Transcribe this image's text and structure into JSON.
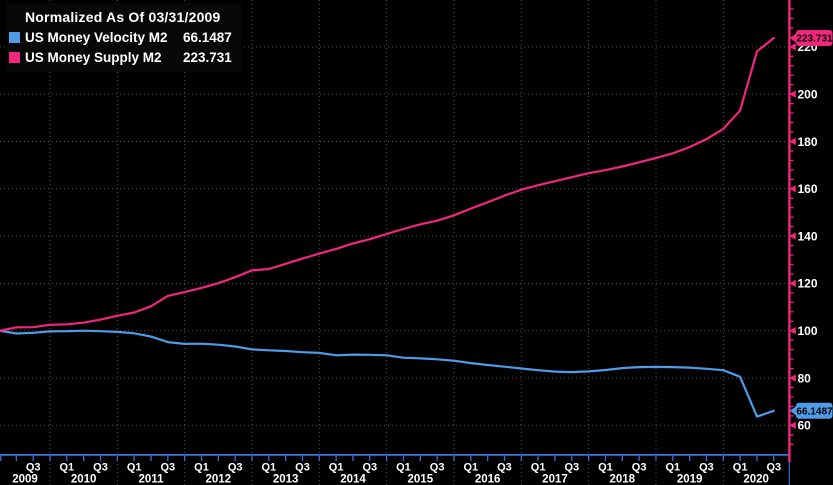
{
  "legend": {
    "title": "Normalized As Of 03/31/2009",
    "items": [
      {
        "label": "US Money Velocity M2",
        "value": "66.1487",
        "color": "#4E9BE8"
      },
      {
        "label": "US Money Supply M2",
        "value": "223.731",
        "color": "#F2267E"
      }
    ]
  },
  "axis": {
    "y_ticks": [
      220,
      200,
      180,
      160,
      140,
      120,
      100,
      80,
      60
    ],
    "x_years": [
      2009,
      2010,
      2011,
      2012,
      2013,
      2014,
      2015,
      2016,
      2017,
      2018,
      2019,
      2020
    ],
    "x_quarter_labels": [
      "Q1",
      "Q3"
    ]
  },
  "colors": {
    "background": "#000000",
    "grid": "#505050",
    "x_axis": "#3573D4",
    "y_axis_spine": "#F2267E",
    "label_text": "#FFFFFF",
    "bubble_text": "#000000"
  },
  "chart_data": {
    "type": "line",
    "title": "Normalized As Of 03/31/2009",
    "normalized_as_of": "03/31/2009",
    "x_unit": "quarter-end",
    "grid": true,
    "legend_position": "top-left",
    "y_axis_side": "right",
    "ylim": [
      52,
      240
    ],
    "x_years": [
      2009,
      2010,
      2011,
      2012,
      2013,
      2014,
      2015,
      2016,
      2017,
      2018,
      2019,
      2020
    ],
    "categories": [
      "2009 Q1",
      "2009 Q2",
      "2009 Q3",
      "2009 Q4",
      "2010 Q1",
      "2010 Q2",
      "2010 Q3",
      "2010 Q4",
      "2011 Q1",
      "2011 Q2",
      "2011 Q3",
      "2011 Q4",
      "2012 Q1",
      "2012 Q2",
      "2012 Q3",
      "2012 Q4",
      "2013 Q1",
      "2013 Q2",
      "2013 Q3",
      "2013 Q4",
      "2014 Q1",
      "2014 Q2",
      "2014 Q3",
      "2014 Q4",
      "2015 Q1",
      "2015 Q2",
      "2015 Q3",
      "2015 Q4",
      "2016 Q1",
      "2016 Q2",
      "2016 Q3",
      "2016 Q4",
      "2017 Q1",
      "2017 Q2",
      "2017 Q3",
      "2017 Q4",
      "2018 Q1",
      "2018 Q2",
      "2018 Q3",
      "2018 Q4",
      "2019 Q1",
      "2019 Q2",
      "2019 Q3",
      "2019 Q4",
      "2020 Q1",
      "2020 Q2",
      "2020 Q3"
    ],
    "series": [
      {
        "name": "US Money Velocity M2",
        "color": "#4E9BE8",
        "last_label": "66.1487",
        "values": [
          100,
          98.8,
          99.1,
          99.7,
          99.8,
          100.0,
          99.8,
          99.5,
          98.9,
          97.5,
          95.2,
          94.4,
          94.5,
          94.1,
          93.3,
          92.1,
          91.7,
          91.4,
          90.9,
          90.6,
          89.6,
          89.9,
          89.8,
          89.6,
          88.6,
          88.3,
          87.9,
          87.3,
          86.3,
          85.5,
          84.8,
          84.0,
          83.3,
          82.7,
          82.5,
          82.8,
          83.4,
          84.2,
          84.6,
          84.7,
          84.6,
          84.4,
          83.9,
          83.3,
          80.5,
          63.7,
          66.1487
        ]
      },
      {
        "name": "US Money Supply M2",
        "color": "#F2267E",
        "last_label": "223.731",
        "values": [
          100,
          101.4,
          101.5,
          102.5,
          102.7,
          103.4,
          104.7,
          106.3,
          107.7,
          110.3,
          114.7,
          116.3,
          118.1,
          120.1,
          122.6,
          125.5,
          126.1,
          128.3,
          130.5,
          132.6,
          134.6,
          136.9,
          138.7,
          140.9,
          143.0,
          145.0,
          146.5,
          148.8,
          151.6,
          154.3,
          157.1,
          159.6,
          161.5,
          163.2,
          164.9,
          166.6,
          167.9,
          169.4,
          171.2,
          173.0,
          175.0,
          177.6,
          181.0,
          185.3,
          193.1,
          218.1,
          223.731
        ]
      }
    ]
  }
}
